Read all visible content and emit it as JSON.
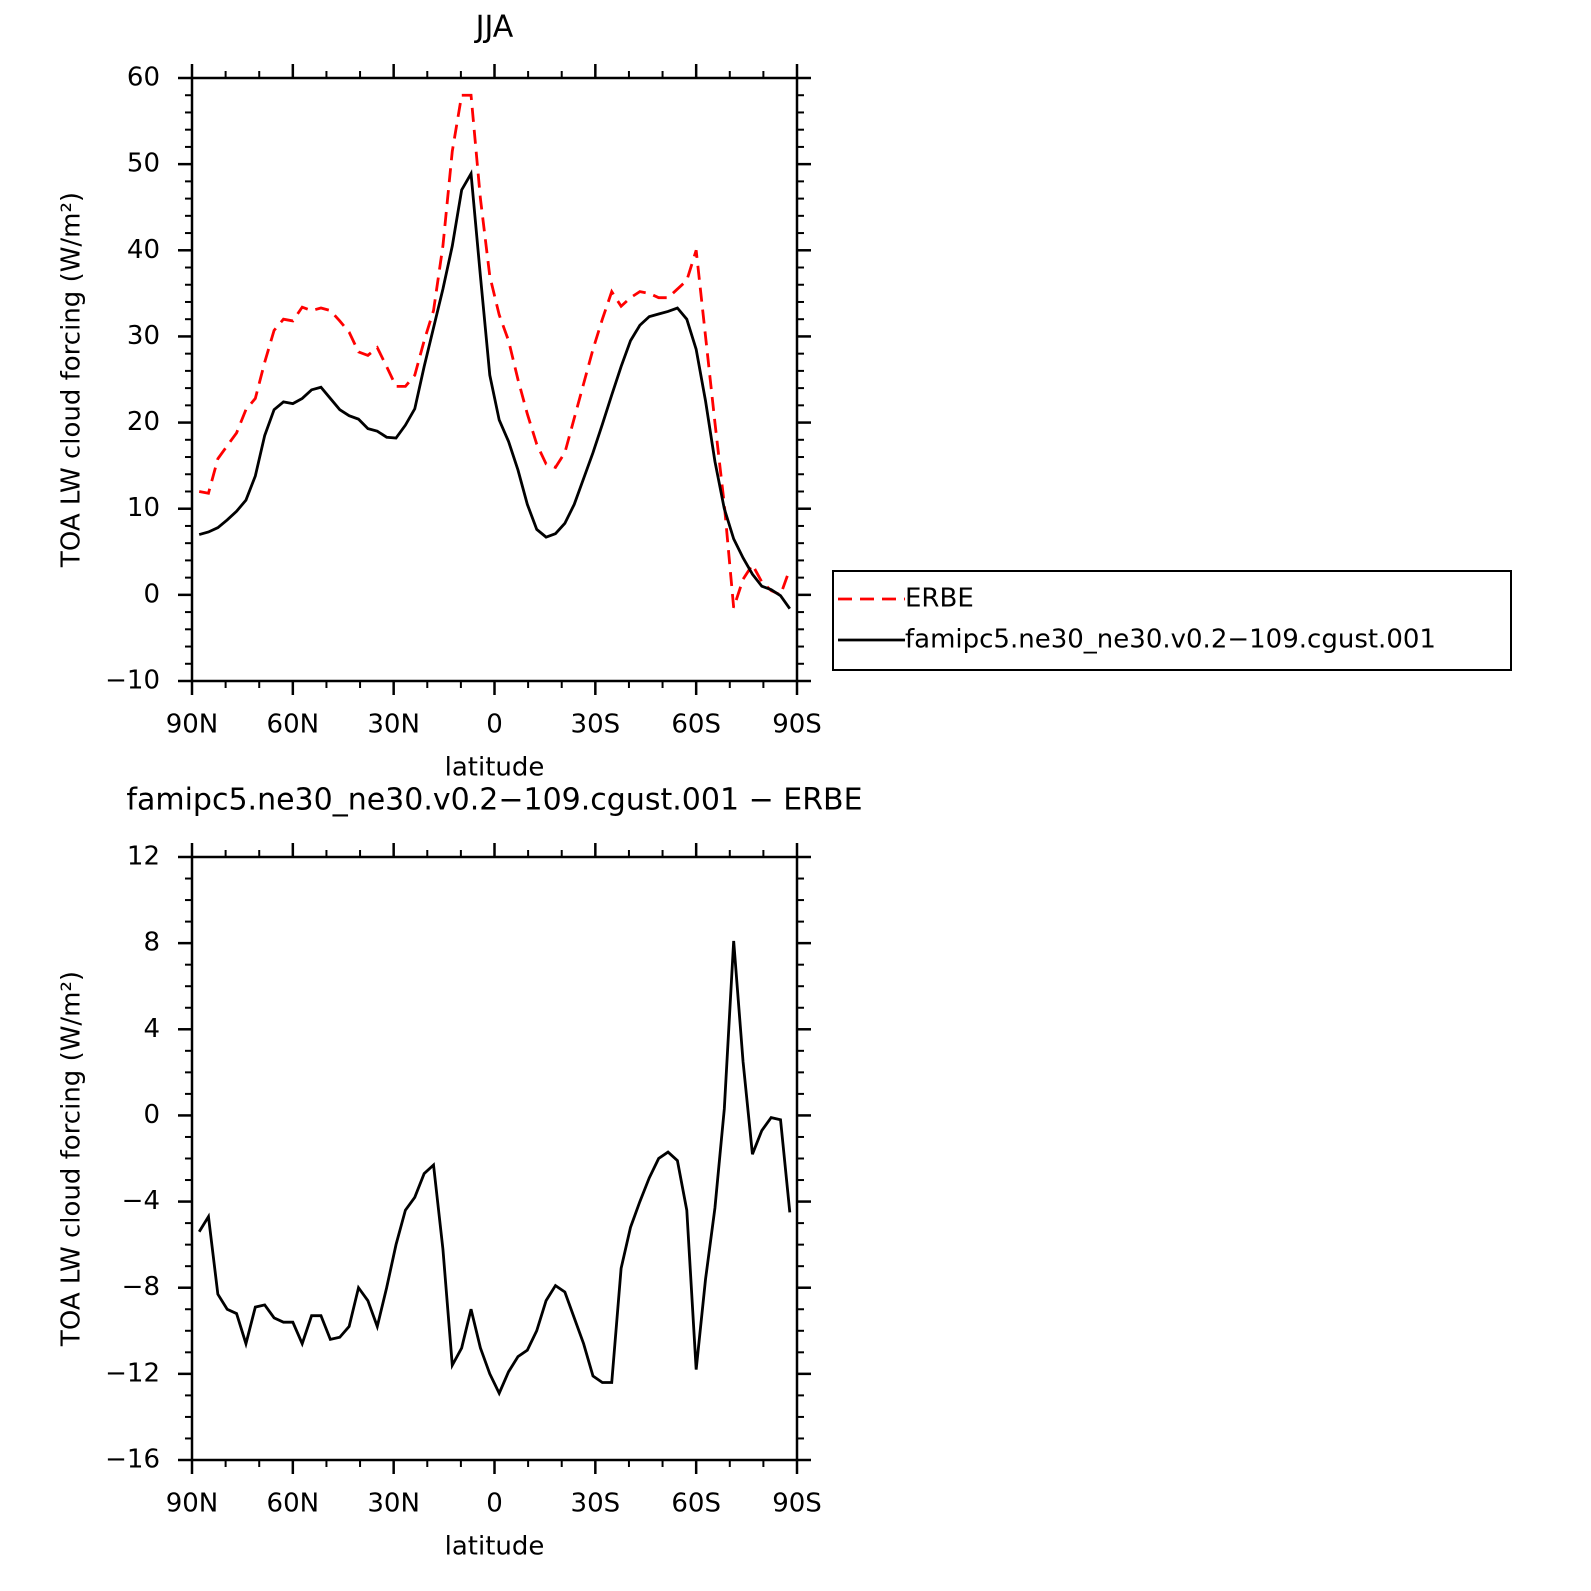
{
  "chart_data": [
    {
      "type": "line",
      "title": "JJA",
      "x_label": "latitude",
      "y_label": "TOA LW cloud forcing (W/m²)",
      "xlim": [
        90,
        -90
      ],
      "xticks": [
        {
          "value": 90,
          "label": "90N"
        },
        {
          "value": 60,
          "label": "60N"
        },
        {
          "value": 30,
          "label": "30N"
        },
        0,
        {
          "value": -30,
          "label": "30S"
        },
        {
          "value": -60,
          "label": "60S"
        },
        {
          "value": -90,
          "label": "90S"
        }
      ],
      "xminor": 2,
      "ylim": [
        -10,
        60
      ],
      "yticks": [
        {
          "value": -10,
          "label": "−10"
        },
        0,
        10,
        20,
        30,
        40,
        50,
        60
      ],
      "yminor": 4,
      "legend": "right",
      "x": [
        87.86,
        85.1,
        82.31,
        79.53,
        76.74,
        73.95,
        71.16,
        68.37,
        65.58,
        62.79,
        60.0,
        57.21,
        54.42,
        51.63,
        48.84,
        46.04,
        43.25,
        40.46,
        37.67,
        34.88,
        32.09,
        29.3,
        26.51,
        23.72,
        20.93,
        18.14,
        15.35,
        12.56,
        9.77,
        6.98,
        4.19,
        1.4,
        -1.4,
        -4.19,
        -6.98,
        -9.77,
        -12.56,
        -15.35,
        -18.14,
        -20.93,
        -23.72,
        -26.51,
        -29.3,
        -32.09,
        -34.88,
        -37.67,
        -40.46,
        -43.25,
        -46.04,
        -48.84,
        -51.63,
        -54.42,
        -57.21,
        -60.0,
        -62.79,
        -65.58,
        -68.37,
        -71.16,
        -73.95,
        -76.74,
        -79.53,
        -82.31,
        -85.1,
        -87.86
      ],
      "series": [
        {
          "name": "ERBE",
          "color": "#ff0000",
          "dash": true,
          "values": [
            12.0,
            11.8,
            15.8,
            17.3,
            18.8,
            21.5,
            22.8,
            27.0,
            30.7,
            32.0,
            31.8,
            33.4,
            33.0,
            33.3,
            33.0,
            31.8,
            30.5,
            28.2,
            27.8,
            28.7,
            26.5,
            24.2,
            24.2,
            25.5,
            29.5,
            33.0,
            40.5,
            51.5,
            58.0,
            58.0,
            46.0,
            37.0,
            32.5,
            29.5,
            25.0,
            21.0,
            17.5,
            15.2,
            14.8,
            16.5,
            20.5,
            24.5,
            28.5,
            32.0,
            35.2,
            33.5,
            34.5,
            35.2,
            35.0,
            34.5,
            34.5,
            35.5,
            36.5,
            40.0,
            30.0,
            20.0,
            10.5,
            -1.5,
            1.8,
            3.5,
            1.5,
            0.5,
            0.0,
            3.0
          ]
        },
        {
          "name": "famipc5.ne30_ne30.v0.2−109.cgust.001",
          "color": "#000000",
          "dash": false,
          "values": [
            7.0,
            7.3,
            7.8,
            8.7,
            9.7,
            11.0,
            13.8,
            18.5,
            21.5,
            22.4,
            22.2,
            22.8,
            23.8,
            24.1,
            22.8,
            21.5,
            20.8,
            20.4,
            19.3,
            19.0,
            18.3,
            18.2,
            19.7,
            21.6,
            26.5,
            31.0,
            35.5,
            40.5,
            47.0,
            48.9,
            37.0,
            25.5,
            20.3,
            17.8,
            14.5,
            10.5,
            7.6,
            6.7,
            7.1,
            8.3,
            10.5,
            13.5,
            16.5,
            19.8,
            23.2,
            26.5,
            29.5,
            31.3,
            32.3,
            32.6,
            32.9,
            33.3,
            32.0,
            28.5,
            22.5,
            15.5,
            10.0,
            6.5,
            4.3,
            2.4,
            1.0,
            0.6,
            -0.1,
            -1.6
          ]
        }
      ]
    },
    {
      "type": "line",
      "title": "famipc5.ne30_ne30.v0.2−109.cgust.001 − ERBE",
      "x_label": "latitude",
      "y_label": "TOA LW cloud forcing (W/m²)",
      "xlim": [
        90,
        -90
      ],
      "xticks": [
        {
          "value": 90,
          "label": "90N"
        },
        {
          "value": 60,
          "label": "60N"
        },
        {
          "value": 30,
          "label": "30N"
        },
        0,
        {
          "value": -30,
          "label": "30S"
        },
        {
          "value": -60,
          "label": "60S"
        },
        {
          "value": -90,
          "label": "90S"
        }
      ],
      "xminor": 2,
      "ylim": [
        -16,
        12
      ],
      "yticks": [
        {
          "value": -16,
          "label": "−16"
        },
        {
          "value": -12,
          "label": "−12"
        },
        {
          "value": -8,
          "label": "−8"
        },
        {
          "value": -4,
          "label": "−4"
        },
        0,
        4,
        8,
        12
      ],
      "yminor": 3,
      "x": [
        87.86,
        85.1,
        82.31,
        79.53,
        76.74,
        73.95,
        71.16,
        68.37,
        65.58,
        62.79,
        60.0,
        57.21,
        54.42,
        51.63,
        48.84,
        46.04,
        43.25,
        40.46,
        37.67,
        34.88,
        32.09,
        29.3,
        26.51,
        23.72,
        20.93,
        18.14,
        15.35,
        12.56,
        9.77,
        6.98,
        4.19,
        1.4,
        -1.4,
        -4.19,
        -6.98,
        -9.77,
        -12.56,
        -15.35,
        -18.14,
        -20.93,
        -23.72,
        -26.51,
        -29.3,
        -32.09,
        -34.88,
        -37.67,
        -40.46,
        -43.25,
        -46.04,
        -48.84,
        -51.63,
        -54.42,
        -57.21,
        -60.0,
        -62.79,
        -65.58,
        -68.37,
        -71.16,
        -73.95,
        -76.74,
        -79.53,
        -82.31,
        -85.1,
        -87.86
      ],
      "series": [
        {
          "color": "#000000",
          "dash": false,
          "values": [
            -5.4,
            -4.7,
            -8.3,
            -9.0,
            -9.2,
            -10.6,
            -8.9,
            -8.8,
            -9.4,
            -9.6,
            -9.6,
            -10.6,
            -9.3,
            -9.3,
            -10.4,
            -10.3,
            -9.8,
            -8.0,
            -8.6,
            -9.8,
            -8.0,
            -6.0,
            -4.4,
            -3.8,
            -2.7,
            -2.3,
            -6.2,
            -11.6,
            -10.8,
            -9.0,
            -10.8,
            -12.0,
            -12.9,
            -11.9,
            -11.2,
            -10.9,
            -10.0,
            -8.6,
            -7.9,
            -8.2,
            -9.4,
            -10.6,
            -12.1,
            -12.4,
            -12.4,
            -7.1,
            -5.2,
            -4.0,
            -2.9,
            -2.0,
            -1.7,
            -2.1,
            -4.4,
            -11.8,
            -7.6,
            -4.3,
            0.3,
            8.1,
            2.5,
            -1.8,
            -0.7,
            -0.1,
            -0.2,
            -4.5
          ]
        }
      ]
    }
  ]
}
